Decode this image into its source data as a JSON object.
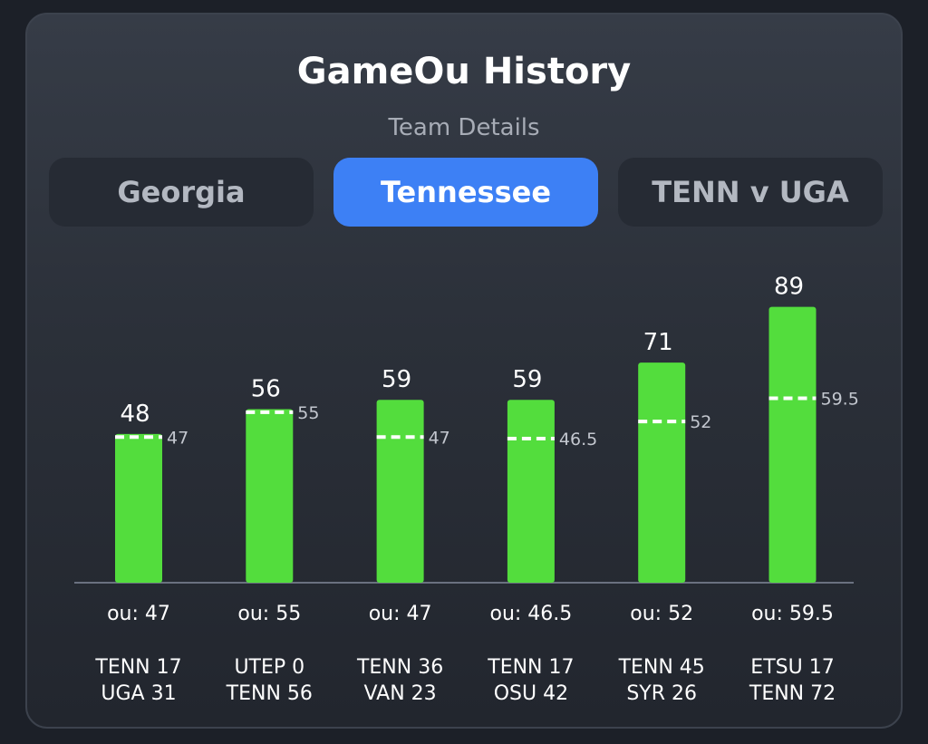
{
  "header": {
    "title": "GameOu History",
    "subtitle": "Team Details"
  },
  "tabs": [
    {
      "label": "Georgia",
      "active": false
    },
    {
      "label": "Tennessee",
      "active": true
    },
    {
      "label": "TENN v UGA",
      "active": false
    }
  ],
  "colors": {
    "bar": "#53dd3d",
    "ou_line": "#ffffff",
    "axis": "#6a7180",
    "active_tab": "#3d80f5"
  },
  "chart_data": {
    "type": "bar",
    "ylim": [
      0,
      100
    ],
    "values": [
      48,
      56,
      59,
      59,
      71,
      89
    ],
    "ou_values": [
      47,
      55,
      47,
      46.5,
      52,
      59.5
    ],
    "ou_labels": [
      "47",
      "55",
      "47",
      "46.5",
      "52",
      "59.5"
    ],
    "ou_captions": [
      "ou: 47",
      "ou: 55",
      "ou: 47",
      "ou: 46.5",
      "ou: 52",
      "ou: 59.5"
    ],
    "games": [
      [
        "TENN 17",
        "UGA 31"
      ],
      [
        "UTEP 0",
        "TENN 56"
      ],
      [
        "TENN 36",
        "VAN 23"
      ],
      [
        "TENN 17",
        "OSU 42"
      ],
      [
        "TENN 45",
        "SYR 26"
      ],
      [
        "ETSU 17",
        "TENN 72"
      ]
    ]
  }
}
